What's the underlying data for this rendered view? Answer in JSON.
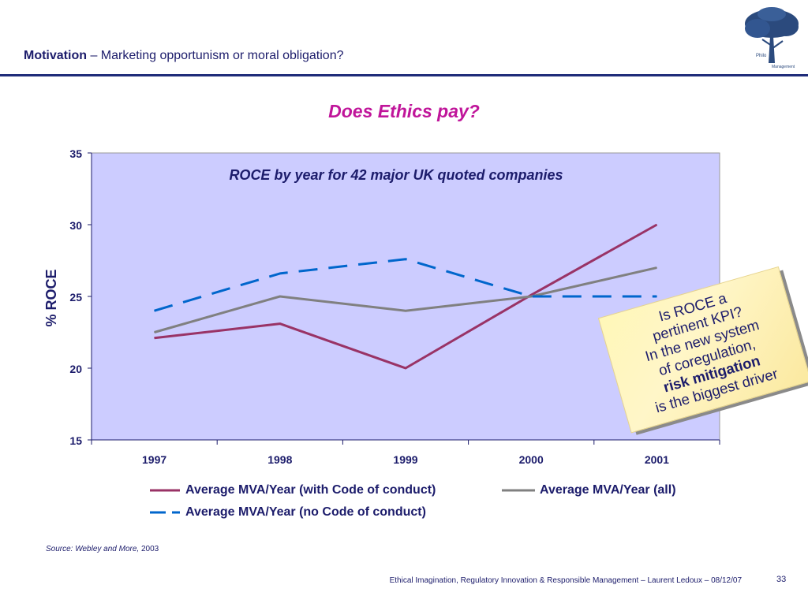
{
  "header": {
    "title_bold": "Motivation",
    "title_rest": " – Marketing opportunism or moral obligation?"
  },
  "colors": {
    "navy": "#1c1c6b",
    "title_magenta": "#c0159a",
    "plot_bg": "#ccccff",
    "series_code": "#993366",
    "series_all": "#808080",
    "series_nocode": "#0066cc"
  },
  "logo": {
    "icon": "tree-icon",
    "text": "Philo Management"
  },
  "chart_data": {
    "type": "line",
    "title": "Does Ethics pay?",
    "subtitle": "ROCE by year for 42 major UK quoted companies",
    "xlabel": "",
    "ylabel": "% ROCE",
    "categories": [
      "1997",
      "1998",
      "1999",
      "2000",
      "2001"
    ],
    "ylim": [
      15,
      35
    ],
    "yticks": [
      "15",
      "20",
      "25",
      "30",
      "35"
    ],
    "grid": false,
    "legend_position": "bottom",
    "series": [
      {
        "name": "Average MVA/Year (with Code of conduct)",
        "values": [
          22.1,
          23.1,
          20.0,
          25.1,
          30.0
        ],
        "style": "solid",
        "color": "#993366"
      },
      {
        "name": "Average MVA/Year (all)",
        "values": [
          22.5,
          25.0,
          24.0,
          25.0,
          27.0
        ],
        "style": "solid",
        "color": "#808080"
      },
      {
        "name": "Average MVA/Year (no Code of conduct)",
        "values": [
          24.0,
          26.6,
          27.6,
          25.0,
          25.0
        ],
        "style": "dashed",
        "color": "#0066cc"
      }
    ]
  },
  "callout": {
    "line1": "Is ROCE a",
    "line2": "pertinent KPI?",
    "line3": "In the new system",
    "line4": "of coregulation,",
    "line5": "risk mitigation",
    "line6": "is the biggest driver"
  },
  "source": {
    "text": "Source: Webley and More,",
    "year": " 2003"
  },
  "footer": {
    "text": "Ethical Imagination, Regulatory Innovation & Responsible Management – Laurent Ledoux  –  08/12/07",
    "page": "33"
  }
}
